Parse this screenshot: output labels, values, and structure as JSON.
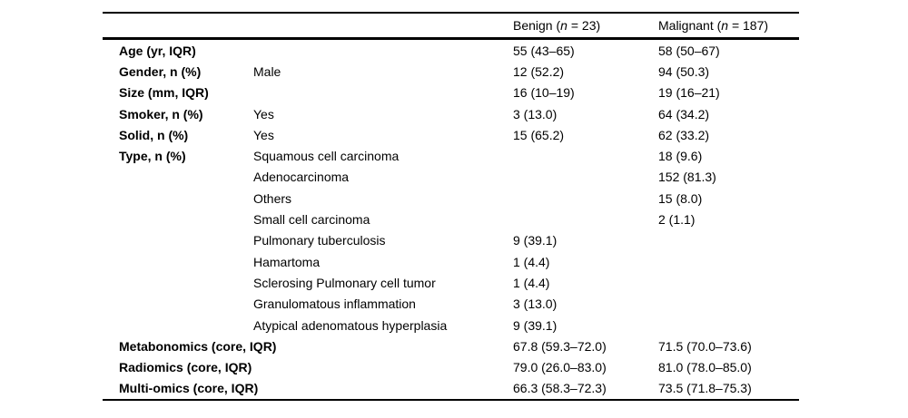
{
  "colors": {
    "background": "#ffffff",
    "text": "#000000",
    "rule": "#000000"
  },
  "table": {
    "header": {
      "benign": {
        "prefix": "Benign (",
        "n": "n",
        "suffix": " = 23)"
      },
      "malignant": {
        "prefix": "Malignant (",
        "n": "n",
        "suffix": " = 187)"
      }
    },
    "rows": [
      {
        "label": "Age (yr, IQR)",
        "sub": "",
        "benign": "55 (43–65)",
        "malignant": "58 (50–67)"
      },
      {
        "label": "Gender, n (%)",
        "sub": "Male",
        "benign": "12 (52.2)",
        "malignant": "94 (50.3)"
      },
      {
        "label": "Size (mm, IQR)",
        "sub": "",
        "benign": "16 (10–19)",
        "malignant": "19 (16–21)"
      },
      {
        "label": "Smoker, n (%)",
        "sub": "Yes",
        "benign": "3 (13.0)",
        "malignant": "64 (34.2)"
      },
      {
        "label": "Solid, n (%)",
        "sub": "Yes",
        "benign": "15 (65.2)",
        "malignant": "62 (33.2)"
      },
      {
        "label": "Type, n (%)",
        "sub": "Squamous cell carcinoma",
        "benign": "",
        "malignant": "18 (9.6)"
      },
      {
        "label": "",
        "sub": "Adenocarcinoma",
        "benign": "",
        "malignant": "152 (81.3)"
      },
      {
        "label": "",
        "sub": "Others",
        "benign": "",
        "malignant": "15 (8.0)"
      },
      {
        "label": "",
        "sub": "Small cell carcinoma",
        "benign": "",
        "malignant": "2 (1.1)"
      },
      {
        "label": "",
        "sub": "Pulmonary tuberculosis",
        "benign": "9 (39.1)",
        "malignant": ""
      },
      {
        "label": "",
        "sub": "Hamartoma",
        "benign": "1 (4.4)",
        "malignant": ""
      },
      {
        "label": "",
        "sub": "Sclerosing Pulmonary cell tumor",
        "benign": "1 (4.4)",
        "malignant": ""
      },
      {
        "label": "",
        "sub": "Granulomatous inflammation",
        "benign": "3 (13.0)",
        "malignant": ""
      },
      {
        "label": "",
        "sub": "Atypical adenomatous hyperplasia",
        "benign": "9 (39.1)",
        "malignant": ""
      },
      {
        "label": "Metabonomics (core, IQR)",
        "sub": "",
        "benign": "67.8 (59.3–72.0)",
        "malignant": "71.5 (70.0–73.6)"
      },
      {
        "label": "Radiomics (core, IQR)",
        "sub": "",
        "benign": "79.0 (26.0–83.0)",
        "malignant": "81.0 (78.0–85.0)"
      },
      {
        "label": "Multi-omics (core, IQR)",
        "sub": "",
        "benign": "66.3 (58.3–72.3)",
        "malignant": "73.5 (71.8–75.3)"
      }
    ]
  }
}
